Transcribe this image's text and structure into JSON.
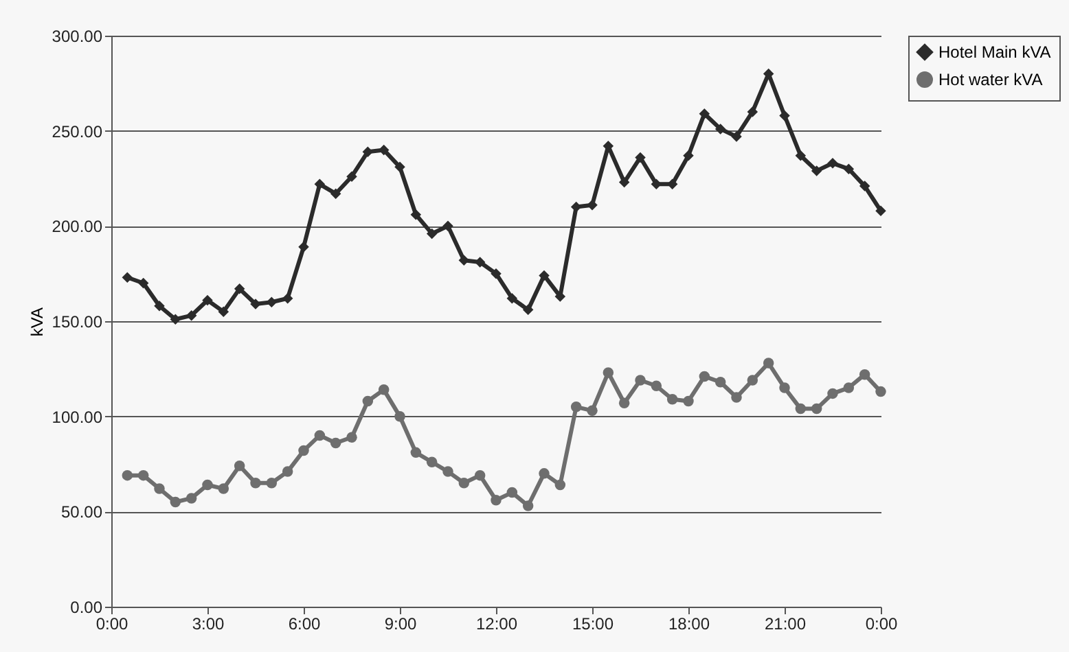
{
  "chart_data": {
    "type": "line",
    "ylabel": "kVA",
    "x": [
      0.5,
      1,
      1.5,
      2,
      2.5,
      3,
      3.5,
      4,
      4.5,
      5,
      5.5,
      6,
      6.5,
      7,
      7.5,
      8,
      8.5,
      9,
      9.5,
      10,
      10.5,
      11,
      11.5,
      12,
      12.5,
      13,
      13.5,
      14,
      14.5,
      15,
      15.5,
      16,
      16.5,
      17,
      17.5,
      18,
      18.5,
      19,
      19.5,
      20,
      20.5,
      21,
      21.5,
      22,
      22.5,
      23,
      23.5,
      24
    ],
    "series": [
      {
        "name": "Hotel Main kVA",
        "color": "#2b2b2b",
        "marker": "diamond",
        "values": [
          173,
          170,
          158,
          151,
          153,
          161,
          155,
          167,
          159,
          160,
          162,
          189,
          222,
          217,
          226,
          239,
          240,
          231,
          206,
          196,
          200,
          182,
          181,
          175,
          162,
          156,
          174,
          163,
          210,
          211,
          242,
          223,
          236,
          222,
          222,
          237,
          259,
          251,
          247,
          260,
          280,
          258,
          237,
          229,
          233,
          230,
          221,
          208
        ]
      },
      {
        "name": "Hot water kVA",
        "color": "#6e6e6e",
        "marker": "circle",
        "values": [
          69,
          69,
          62,
          55,
          57,
          64,
          62,
          74,
          65,
          65,
          71,
          82,
          90,
          86,
          89,
          108,
          114,
          100,
          81,
          76,
          71,
          65,
          69,
          56,
          60,
          53,
          70,
          64,
          105,
          103,
          123,
          107,
          119,
          116,
          109,
          108,
          121,
          118,
          110,
          119,
          128,
          115,
          104,
          104,
          112,
          115,
          122,
          113
        ]
      }
    ],
    "xlim": [
      0,
      24
    ],
    "xticks": [
      {
        "value": 0,
        "label": "0:00"
      },
      {
        "value": 3,
        "label": "3:00"
      },
      {
        "value": 6,
        "label": "6:00"
      },
      {
        "value": 9,
        "label": "9:00"
      },
      {
        "value": 12,
        "label": "12:00"
      },
      {
        "value": 15,
        "label": "15:00"
      },
      {
        "value": 18,
        "label": "18:00"
      },
      {
        "value": 21,
        "label": "21:00"
      },
      {
        "value": 24,
        "label": "0:00"
      }
    ],
    "ylim": [
      0,
      300
    ],
    "yticks": [
      {
        "value": 0,
        "label": "0.00"
      },
      {
        "value": 50,
        "label": "50.00"
      },
      {
        "value": 100,
        "label": "100.00"
      },
      {
        "value": 150,
        "label": "150.00"
      },
      {
        "value": 200,
        "label": "200.00"
      },
      {
        "value": 250,
        "label": "250.00"
      },
      {
        "value": 300,
        "label": "300.00"
      }
    ],
    "grid": "y",
    "legend": "right"
  }
}
